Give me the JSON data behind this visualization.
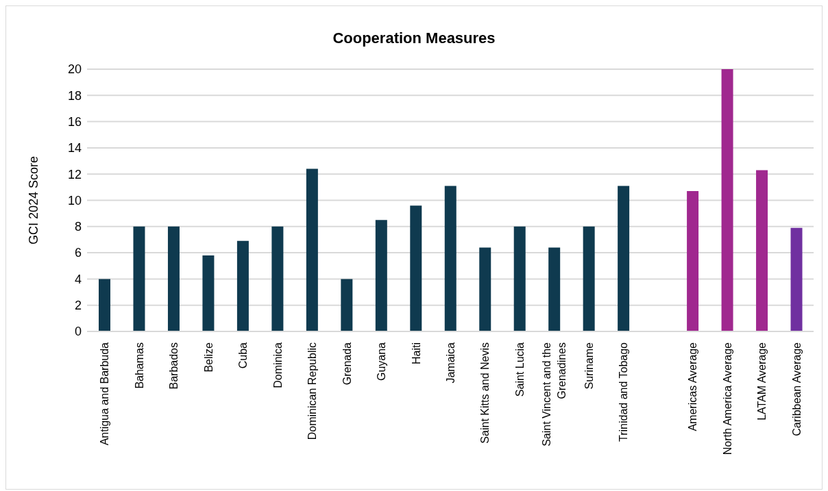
{
  "chart_data": {
    "type": "bar",
    "title": "Cooperation Measures",
    "ylabel": "GCI 2024 Score",
    "categories": [
      "Antigua and Barbuda",
      "Bahamas",
      "Barbados",
      "Belize",
      "Cuba",
      "Dominica",
      "Dominican Republic",
      "Grenada",
      "Guyana",
      "Haiti",
      "Jamaica",
      "Saint Kitts and Nevis",
      "Saint Lucia",
      "Saint Vincent and the Grenadines",
      "Suriname",
      "Trinidad and Tobago",
      null,
      "Americas Average",
      "North America Average",
      "LATAM Average",
      "Caribbean Average"
    ],
    "values": [
      4,
      8,
      8,
      5.8,
      6.9,
      8,
      12.4,
      4,
      8.5,
      9.6,
      11.1,
      6.4,
      8,
      6.4,
      8,
      11.1,
      null,
      10.7,
      20,
      12.3,
      7.9
    ],
    "colors": [
      "#0f3a4f",
      "#0f3a4f",
      "#0f3a4f",
      "#0f3a4f",
      "#0f3a4f",
      "#0f3a4f",
      "#0f3a4f",
      "#0f3a4f",
      "#0f3a4f",
      "#0f3a4f",
      "#0f3a4f",
      "#0f3a4f",
      "#0f3a4f",
      "#0f3a4f",
      "#0f3a4f",
      "#0f3a4f",
      "#0f3a4f",
      "#a0288f",
      "#a0288f",
      "#a0288f",
      "#7030a0"
    ],
    "ylim": [
      0,
      20
    ],
    "yticks": [
      0,
      2,
      4,
      6,
      8,
      10,
      12,
      14,
      16,
      18,
      20
    ],
    "grid": "y"
  }
}
